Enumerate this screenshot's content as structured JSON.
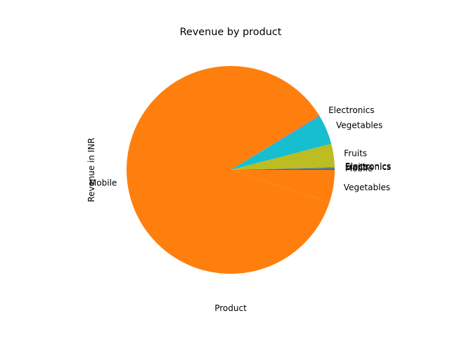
{
  "chart_data": {
    "type": "pie",
    "title": "Revenue by product",
    "xlabel": "Product",
    "ylabel": "Revenue in INR",
    "slices": [
      {
        "label": "Mobile",
        "value": 0.3
      },
      {
        "label": "Electronics",
        "value": 0.05
      },
      {
        "label": "Fruits",
        "value": 0.05
      },
      {
        "label": "Electronics",
        "value": 0.05
      },
      {
        "label": "Fruits",
        "value": 3.6
      },
      {
        "label": "Vegetables",
        "value": 4.6
      },
      {
        "label": "Electronics",
        "value": 0.1
      },
      {
        "label": "Mobile",
        "value": 86.2
      },
      {
        "label": "Vegetables",
        "value": 5.05
      }
    ],
    "colors": [
      "#1f77b4",
      "#ff7f0e",
      "#2ca02c",
      "#d62728",
      "#bcbd22",
      "#17becf",
      "#9467bd",
      "#ff7f0e",
      "#ff7f0e"
    ]
  }
}
